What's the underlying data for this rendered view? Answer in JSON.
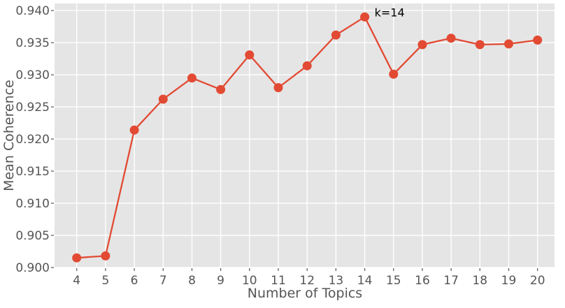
{
  "chart_data": {
    "type": "line",
    "title": "",
    "xlabel": "Number of Topics",
    "ylabel": "Mean Coherence",
    "x": [
      4,
      5,
      6,
      7,
      8,
      9,
      10,
      11,
      12,
      13,
      14,
      15,
      16,
      17,
      18,
      19,
      20
    ],
    "y": [
      0.9015,
      0.9018,
      0.9214,
      0.9262,
      0.9295,
      0.9277,
      0.9331,
      0.928,
      0.9314,
      0.9362,
      0.939,
      0.9301,
      0.9347,
      0.9357,
      0.9347,
      0.9348,
      0.9354
    ],
    "annotation": {
      "text": "k=14",
      "x": 14,
      "y": 0.939
    },
    "xlim": [
      3.23,
      20.59
    ],
    "ylim": [
      0.9,
      0.9411
    ],
    "xticks": [
      4,
      5,
      6,
      7,
      8,
      9,
      10,
      11,
      12,
      13,
      14,
      15,
      16,
      17,
      18,
      19,
      20
    ],
    "yticks": [
      0.9,
      0.905,
      0.91,
      0.915,
      0.92,
      0.925,
      0.93,
      0.935,
      0.94
    ],
    "ytick_labels": [
      "0.900",
      "0.905",
      "0.910",
      "0.915",
      "0.920",
      "0.925",
      "0.930",
      "0.935",
      "0.940"
    ],
    "grid": true,
    "legend": "none",
    "style": {
      "line_color": "#E24A33",
      "marker_color": "#E24A33",
      "plot_bg": "#E5E5E5",
      "fig_bg": "#FFFFFF",
      "grid_color": "#FFFFFF",
      "tick_color": "#555555",
      "tick_label_color": "#555555",
      "axis_label_color": "#555555",
      "annotation_color": "#000000"
    }
  }
}
